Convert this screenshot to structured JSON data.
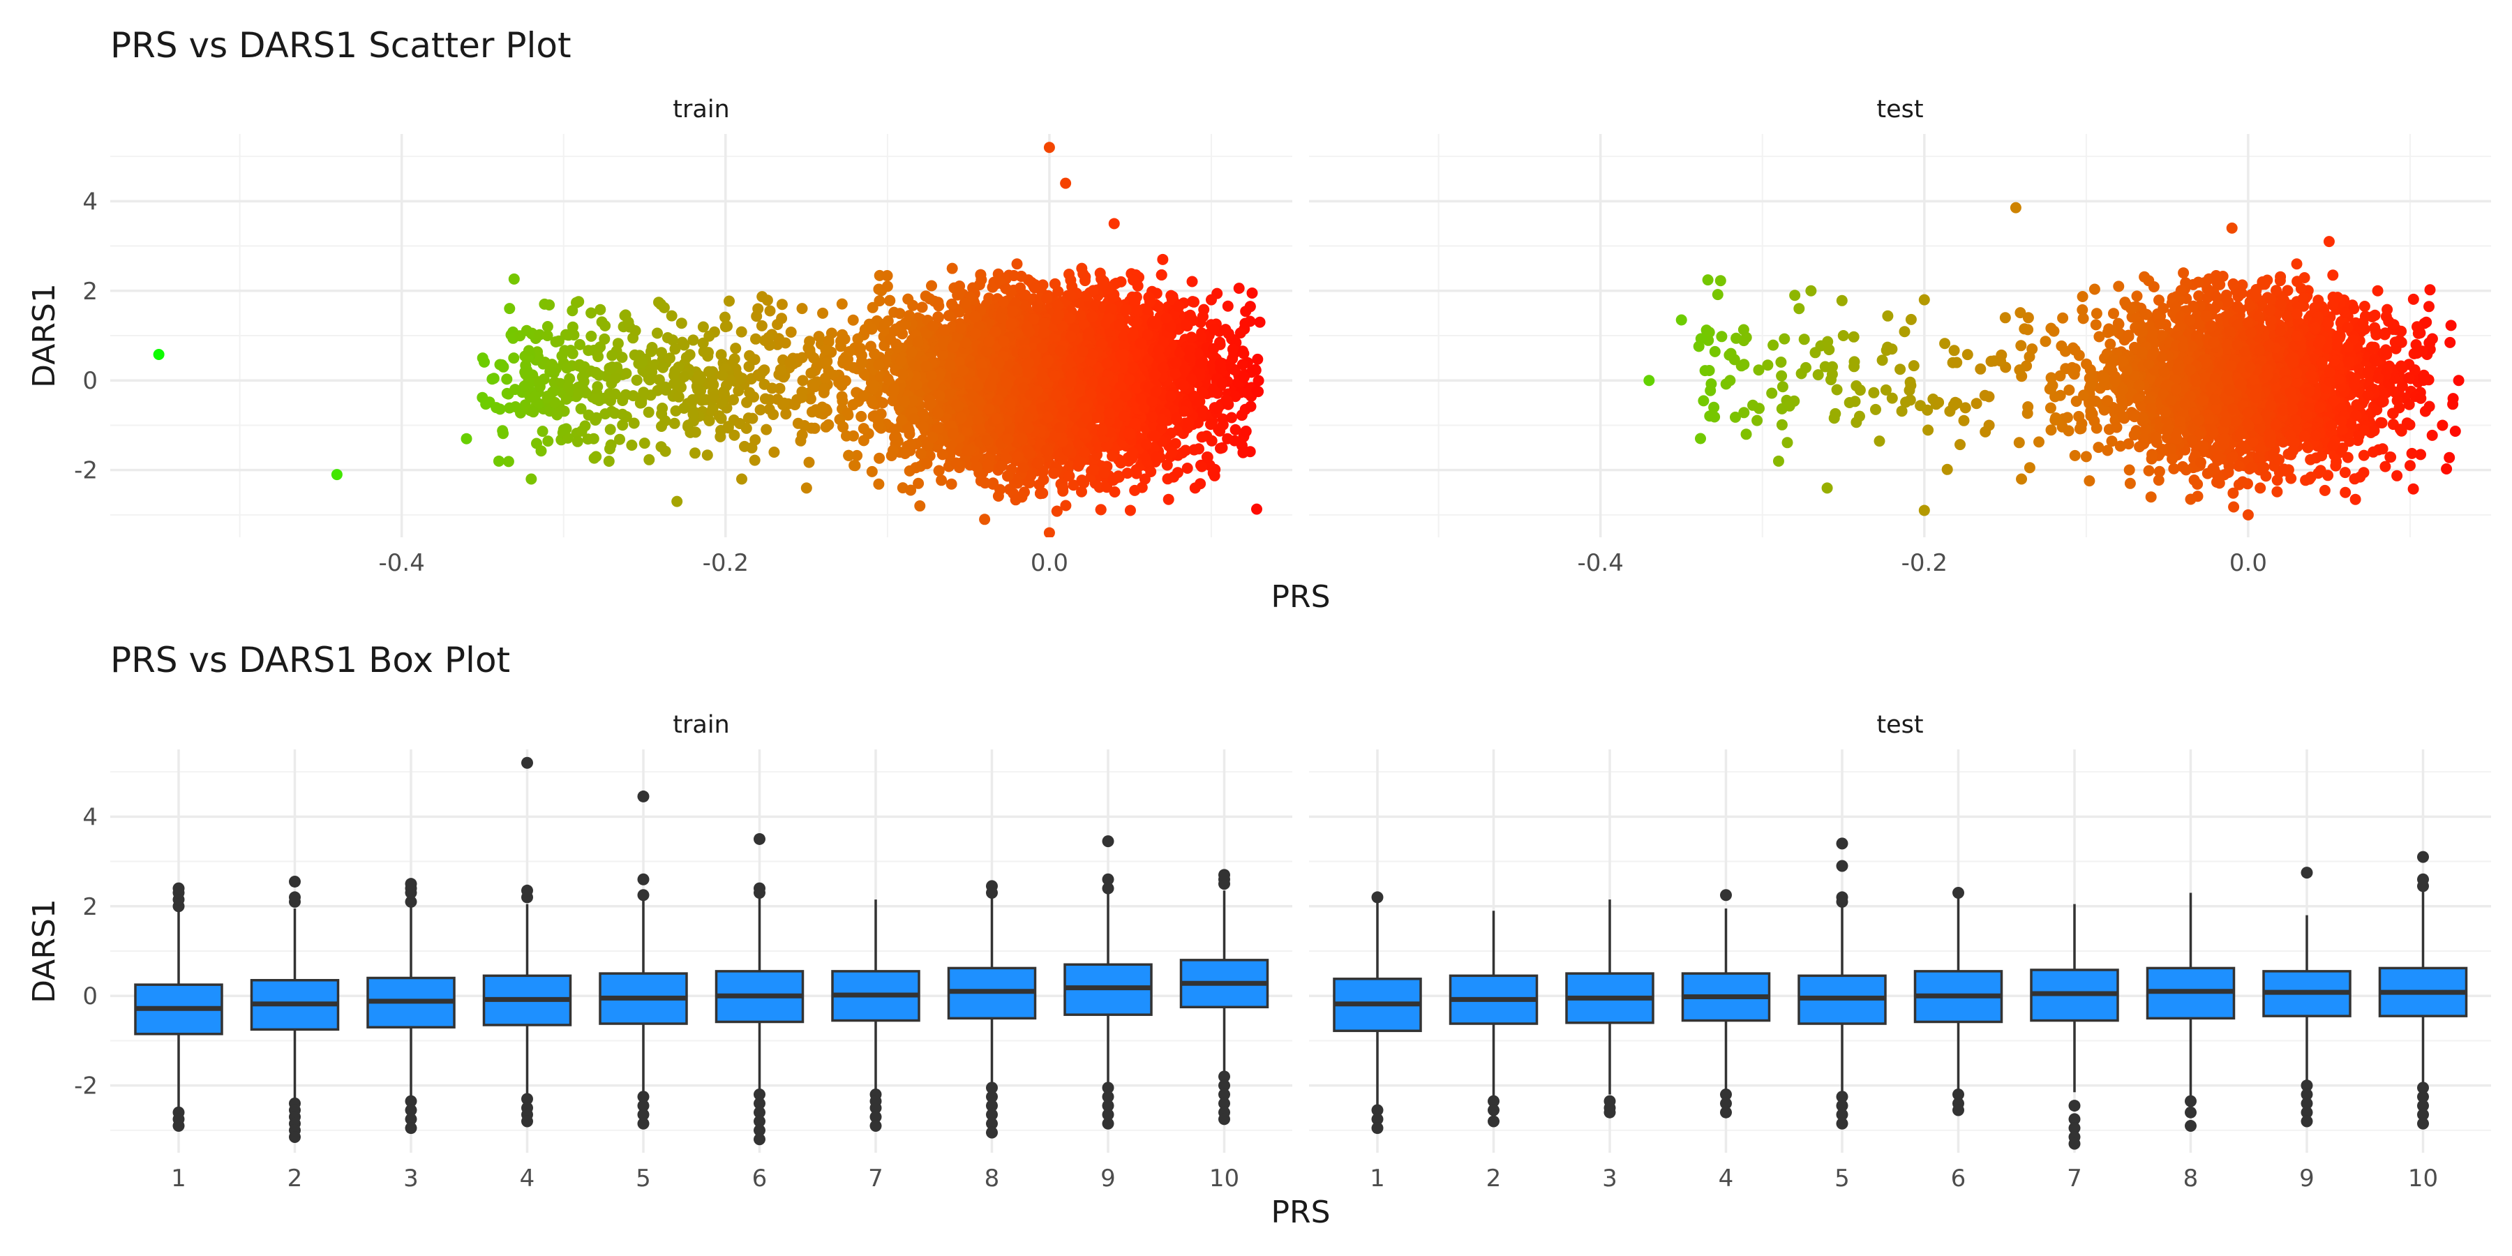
{
  "chart_data": [
    {
      "type": "scatter",
      "title": "PRS vs DARS1 Scatter Plot",
      "xlabel": "PRS",
      "ylabel": "DARS1",
      "facets": [
        "train",
        "test"
      ],
      "xlim": [
        -0.58,
        0.15
      ],
      "ylim": [
        -3.5,
        5.5
      ],
      "xticks": [
        -0.4,
        -0.2,
        0.0
      ],
      "xtick_labels": [
        "-0.4",
        "-0.2",
        "0.0"
      ],
      "yticks": [
        -2,
        0,
        2,
        4
      ],
      "ytick_labels": [
        "-2",
        "0",
        "2",
        "4"
      ],
      "grid": true,
      "color_scale": {
        "low": "#00ff00",
        "high": "#ff0000",
        "mapped_to": "PRS"
      },
      "series": [
        {
          "facet": "train",
          "points": [
            {
              "x": -0.55,
              "y": 0.58
            },
            {
              "x": -0.44,
              "y": -2.1
            },
            {
              "x": -0.36,
              "y": -1.3
            },
            {
              "x": -0.35,
              "y": 0.5
            },
            {
              "x": -0.34,
              "y": -1.8
            },
            {
              "x": -0.33,
              "y": -0.2
            },
            {
              "x": -0.32,
              "y": -2.2
            },
            {
              "x": -0.31,
              "y": 1.0
            },
            {
              "x": -0.3,
              "y": -1.1
            },
            {
              "x": -0.29,
              "y": 0.8
            },
            {
              "x": -0.28,
              "y": -1.7
            },
            {
              "x": -0.27,
              "y": 0.3
            },
            {
              "x": -0.26,
              "y": 1.3
            },
            {
              "x": -0.25,
              "y": -1.4
            },
            {
              "x": -0.24,
              "y": 1.7
            },
            {
              "x": -0.23,
              "y": -2.7
            },
            {
              "x": -0.22,
              "y": 0.9
            },
            {
              "x": -0.21,
              "y": -0.9
            },
            {
              "x": -0.2,
              "y": 1.2
            },
            {
              "x": -0.19,
              "y": -2.2
            },
            {
              "x": -0.18,
              "y": 1.6
            },
            {
              "x": -0.17,
              "y": -1.6
            },
            {
              "x": -0.16,
              "y": 0.4
            },
            {
              "x": -0.15,
              "y": -2.4
            },
            {
              "x": -0.14,
              "y": 1.5
            },
            {
              "x": -0.12,
              "y": -1.9
            },
            {
              "x": -0.1,
              "y": 2.1
            },
            {
              "x": -0.08,
              "y": -2.8
            },
            {
              "x": -0.06,
              "y": 2.5
            },
            {
              "x": -0.04,
              "y": -3.1
            },
            {
              "x": -0.02,
              "y": 2.6
            },
            {
              "x": 0.0,
              "y": 5.2
            },
            {
              "x": 0.01,
              "y": 4.4
            },
            {
              "x": 0.0,
              "y": -3.4
            },
            {
              "x": 0.02,
              "y": 2.5
            },
            {
              "x": 0.04,
              "y": 3.5
            },
            {
              "x": 0.05,
              "y": -2.9
            },
            {
              "x": 0.07,
              "y": 2.7
            },
            {
              "x": 0.09,
              "y": -2.4
            },
            {
              "x": 0.1,
              "y": 1.8
            },
            {
              "x": 0.12,
              "y": 0.6
            },
            {
              "x": 0.13,
              "y": 1.3
            },
            {
              "x": 0.11,
              "y": -1.3
            }
          ]
        },
        {
          "facet": "test",
          "points": [
            {
              "x": -0.37,
              "y": 0.0
            },
            {
              "x": -0.35,
              "y": 1.35
            },
            {
              "x": -0.33,
              "y": -0.6
            },
            {
              "x": -0.32,
              "y": 0.0
            },
            {
              "x": -0.31,
              "y": -1.2
            },
            {
              "x": -0.29,
              "y": -1.8
            },
            {
              "x": -0.28,
              "y": 1.9
            },
            {
              "x": -0.27,
              "y": 2.0
            },
            {
              "x": -0.26,
              "y": -2.4
            },
            {
              "x": -0.25,
              "y": 1.0
            },
            {
              "x": -0.24,
              "y": -0.8
            },
            {
              "x": -0.22,
              "y": 0.7
            },
            {
              "x": -0.2,
              "y": 1.8
            },
            {
              "x": -0.2,
              "y": -2.9
            },
            {
              "x": -0.18,
              "y": 0.4
            },
            {
              "x": -0.16,
              "y": -1.0
            },
            {
              "x": -0.15,
              "y": 1.4
            },
            {
              "x": -0.14,
              "y": -2.2
            },
            {
              "x": -0.12,
              "y": 1.1
            },
            {
              "x": -0.1,
              "y": -1.7
            },
            {
              "x": -0.08,
              "y": 2.1
            },
            {
              "x": -0.06,
              "y": -2.6
            },
            {
              "x": -0.04,
              "y": 2.4
            },
            {
              "x": -0.01,
              "y": 3.4
            },
            {
              "x": 0.0,
              "y": -3.0
            },
            {
              "x": 0.03,
              "y": 2.6
            },
            {
              "x": 0.05,
              "y": 3.1
            },
            {
              "x": 0.06,
              "y": -2.5
            },
            {
              "x": 0.08,
              "y": 2.0
            },
            {
              "x": 0.1,
              "y": -1.9
            },
            {
              "x": 0.11,
              "y": 1.3
            },
            {
              "x": 0.13,
              "y": 0.0
            },
            {
              "x": 0.12,
              "y": -1.0
            }
          ]
        }
      ]
    },
    {
      "type": "box",
      "title": "PRS vs DARS1 Box Plot",
      "xlabel": "PRS",
      "ylabel": "DARS1",
      "facets": [
        "train",
        "test"
      ],
      "categories": [
        "1",
        "2",
        "3",
        "4",
        "5",
        "6",
        "7",
        "8",
        "9",
        "10"
      ],
      "ylim": [
        -3.5,
        5.5
      ],
      "yticks": [
        -2,
        0,
        2,
        4
      ],
      "ytick_labels": [
        "-2",
        "0",
        "2",
        "4"
      ],
      "fill_color": "#1e90ff",
      "grid": true,
      "series": [
        {
          "facet": "train",
          "boxes": [
            {
              "q1": -0.85,
              "median": -0.28,
              "q3": 0.25,
              "whisker_low": -2.5,
              "whisker_high": 1.95,
              "outliers": [
                2.0,
                2.15,
                2.3,
                2.4,
                -2.6,
                -2.75,
                -2.9
              ]
            },
            {
              "q1": -0.75,
              "median": -0.18,
              "q3": 0.35,
              "whisker_low": -2.35,
              "whisker_high": 1.95,
              "outliers": [
                2.1,
                2.2,
                2.55,
                -2.4,
                -2.55,
                -2.7,
                -2.85,
                -3.0,
                -3.15
              ]
            },
            {
              "q1": -0.7,
              "median": -0.12,
              "q3": 0.4,
              "whisker_low": -2.25,
              "whisker_high": 2.0,
              "outliers": [
                2.1,
                2.3,
                2.4,
                2.5,
                -2.35,
                -2.55,
                -2.75,
                -2.95
              ]
            },
            {
              "q1": -0.65,
              "median": -0.08,
              "q3": 0.45,
              "whisker_low": -2.25,
              "whisker_high": 2.05,
              "outliers": [
                2.2,
                2.35,
                5.2,
                -2.3,
                -2.5,
                -2.65,
                -2.8
              ]
            },
            {
              "q1": -0.62,
              "median": -0.05,
              "q3": 0.5,
              "whisker_low": -2.2,
              "whisker_high": 2.2,
              "outliers": [
                2.25,
                2.6,
                4.45,
                -2.25,
                -2.45,
                -2.65,
                -2.85
              ]
            },
            {
              "q1": -0.58,
              "median": 0.0,
              "q3": 0.55,
              "whisker_low": -2.15,
              "whisker_high": 2.25,
              "outliers": [
                2.3,
                2.4,
                3.5,
                -2.2,
                -2.4,
                -2.6,
                -2.8,
                -3.0,
                -3.2
              ]
            },
            {
              "q1": -0.55,
              "median": 0.02,
              "q3": 0.55,
              "whisker_low": -2.15,
              "whisker_high": 2.15,
              "outliers": [
                -2.2,
                -2.35,
                -2.5,
                -2.7,
                -2.9
              ]
            },
            {
              "q1": -0.5,
              "median": 0.1,
              "q3": 0.62,
              "whisker_low": -2.0,
              "whisker_high": 2.25,
              "outliers": [
                2.3,
                2.45,
                -2.05,
                -2.25,
                -2.45,
                -2.65,
                -2.85,
                -3.05
              ]
            },
            {
              "q1": -0.42,
              "median": 0.18,
              "q3": 0.7,
              "whisker_low": -2.0,
              "whisker_high": 2.3,
              "outliers": [
                2.4,
                2.6,
                3.45,
                -2.05,
                -2.25,
                -2.45,
                -2.65,
                -2.85
              ]
            },
            {
              "q1": -0.25,
              "median": 0.28,
              "q3": 0.8,
              "whisker_low": -1.75,
              "whisker_high": 2.35,
              "outliers": [
                2.5,
                2.6,
                2.7,
                -1.8,
                -2.0,
                -2.2,
                -2.4,
                -2.6,
                -2.75
              ]
            }
          ]
        },
        {
          "facet": "test",
          "boxes": [
            {
              "q1": -0.78,
              "median": -0.18,
              "q3": 0.38,
              "whisker_low": -2.45,
              "whisker_high": 2.15,
              "outliers": [
                2.2,
                -2.55,
                -2.75,
                -2.95
              ]
            },
            {
              "q1": -0.62,
              "median": -0.08,
              "q3": 0.45,
              "whisker_low": -2.25,
              "whisker_high": 1.9,
              "outliers": [
                -2.35,
                -2.55,
                -2.8
              ]
            },
            {
              "q1": -0.6,
              "median": -0.05,
              "q3": 0.5,
              "whisker_low": -2.2,
              "whisker_high": 2.15,
              "outliers": [
                -2.35,
                -2.5,
                -2.6
              ]
            },
            {
              "q1": -0.55,
              "median": -0.02,
              "q3": 0.5,
              "whisker_low": -2.1,
              "whisker_high": 1.95,
              "outliers": [
                2.25,
                -2.2,
                -2.4,
                -2.6
              ]
            },
            {
              "q1": -0.62,
              "median": -0.05,
              "q3": 0.45,
              "whisker_low": -2.2,
              "whisker_high": 2.0,
              "outliers": [
                2.1,
                2.2,
                2.9,
                3.4,
                -2.25,
                -2.45,
                -2.65,
                -2.85
              ]
            },
            {
              "q1": -0.58,
              "median": 0.0,
              "q3": 0.55,
              "whisker_low": -2.15,
              "whisker_high": 2.25,
              "outliers": [
                2.3,
                -2.2,
                -2.4,
                -2.55
              ]
            },
            {
              "q1": -0.55,
              "median": 0.05,
              "q3": 0.58,
              "whisker_low": -2.15,
              "whisker_high": 2.05,
              "outliers": [
                -2.45,
                -2.75,
                -2.95,
                -3.15,
                -3.3
              ]
            },
            {
              "q1": -0.5,
              "median": 0.1,
              "q3": 0.62,
              "whisker_low": -2.25,
              "whisker_high": 2.3,
              "outliers": [
                -2.35,
                -2.6,
                -2.9
              ]
            },
            {
              "q1": -0.45,
              "median": 0.08,
              "q3": 0.55,
              "whisker_low": -1.95,
              "whisker_high": 1.8,
              "outliers": [
                2.75,
                -2.0,
                -2.2,
                -2.4,
                -2.6,
                -2.8
              ]
            },
            {
              "q1": -0.45,
              "median": 0.08,
              "q3": 0.62,
              "whisker_low": -2.0,
              "whisker_high": 2.35,
              "outliers": [
                2.45,
                2.6,
                3.1,
                -2.05,
                -2.25,
                -2.45,
                -2.65,
                -2.85
              ]
            }
          ]
        }
      ]
    }
  ]
}
